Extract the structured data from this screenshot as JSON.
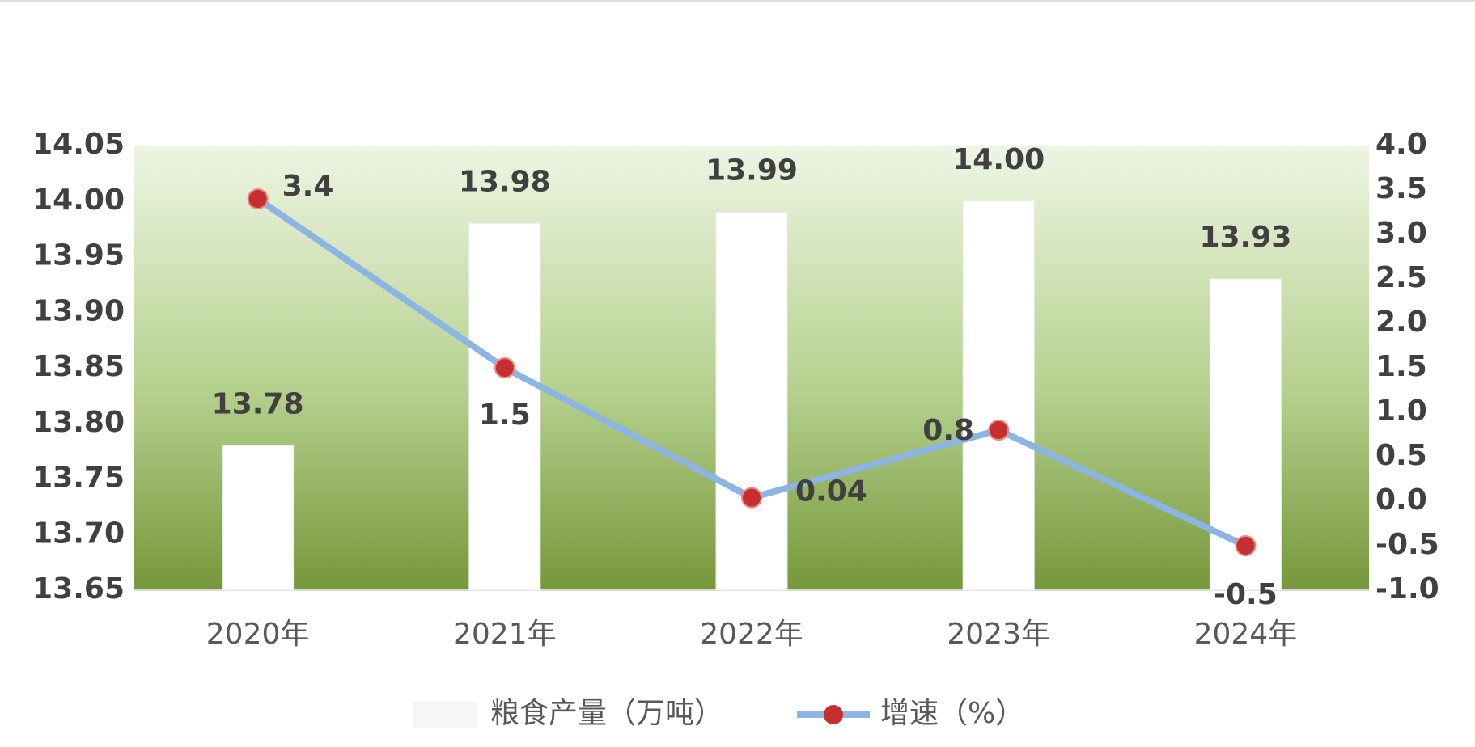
{
  "chart_data": {
    "type": "bar-line",
    "categories": [
      "2020年",
      "2021年",
      "2022年",
      "2023年",
      "2024年"
    ],
    "series": [
      {
        "name": "粮食产量（万吨）",
        "type": "bar",
        "color": "#ffffff",
        "values": [
          13.78,
          13.98,
          13.99,
          14.0,
          13.93
        ],
        "value_labels": [
          "13.78",
          "13.98",
          "13.99",
          "14.00",
          "13.93"
        ]
      },
      {
        "name": "增速（%）",
        "type": "line",
        "axis": "y2",
        "color": "#8db4e2",
        "marker_color": "#c62f2f",
        "values": [
          3.4,
          1.5,
          0.04,
          0.8,
          -0.5
        ]
      }
    ],
    "ylim": [
      13.65,
      14.05
    ],
    "yticks": [
      {
        "value": 13.65,
        "label": "13.65"
      },
      {
        "value": 13.7,
        "label": "13.70"
      },
      {
        "value": 13.75,
        "label": "13.75"
      },
      {
        "value": 13.8,
        "label": "13.80"
      },
      {
        "value": 13.85,
        "label": "13.85"
      },
      {
        "value": 13.9,
        "label": "13.90"
      },
      {
        "value": 13.95,
        "label": "13.95"
      },
      {
        "value": 14.0,
        "label": "14.00"
      },
      {
        "value": 14.05,
        "label": "14.05"
      }
    ],
    "y2lim": [
      -1.0,
      4.0
    ],
    "y2ticks": [
      {
        "value": -1,
        "label": "-1.0"
      },
      {
        "value": -0.5,
        "label": "-0.5"
      },
      {
        "value": 0,
        "label": "0.0"
      },
      {
        "value": 0.5,
        "label": "0.5"
      },
      {
        "value": 1,
        "label": "1.0"
      },
      {
        "value": 1.5,
        "label": "1.5"
      },
      {
        "value": 2,
        "label": "2.0"
      },
      {
        "value": 2.5,
        "label": "2.5"
      },
      {
        "value": 3,
        "label": "3.0"
      },
      {
        "value": 3.5,
        "label": "3.5"
      },
      {
        "value": 4,
        "label": "4.0"
      }
    ],
    "legend": "bottom"
  }
}
